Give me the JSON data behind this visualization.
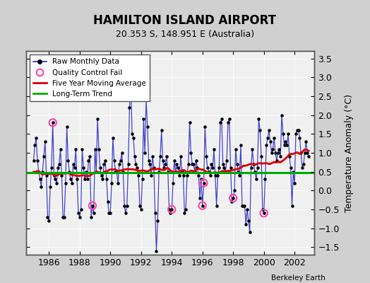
{
  "title": "HAMILTON ISLAND AIRPORT",
  "subtitle": "20.353 S, 148.951 E (Australia)",
  "ylabel": "Temperature Anomaly (°C)",
  "credit": "Berkeley Earth",
  "xlim": [
    1984.5,
    2003.3
  ],
  "ylim": [
    -1.7,
    3.7
  ],
  "yticks": [
    -1.5,
    -1.0,
    -0.5,
    0.0,
    0.5,
    1.0,
    1.5,
    2.0,
    2.5,
    3.0,
    3.5
  ],
  "xticks": [
    1986,
    1988,
    1990,
    1992,
    1994,
    1996,
    1998,
    2000,
    2002
  ],
  "long_term_trend": 0.48,
  "plot_bg": "#f0f0f0",
  "fig_bg": "#d0d0d0",
  "raw_color": "#2222cc",
  "ma_color": "#dd0000",
  "trend_color": "#00aa00",
  "qc_color": "#ff44aa",
  "raw_monthly": [
    0.8,
    1.2,
    1.4,
    0.8,
    0.5,
    0.3,
    0.1,
    0.5,
    0.9,
    1.3,
    0.4,
    -0.7,
    -0.8,
    0.1,
    0.6,
    1.8,
    0.4,
    0.3,
    0.2,
    0.6,
    0.7,
    1.1,
    0.4,
    -0.7,
    -0.7,
    0.2,
    1.7,
    0.8,
    0.5,
    0.3,
    0.2,
    0.7,
    0.6,
    1.1,
    0.3,
    -0.6,
    -0.7,
    -0.5,
    1.1,
    0.6,
    0.3,
    0.5,
    0.3,
    0.8,
    0.9,
    -0.7,
    -0.4,
    -0.6,
    1.1,
    0.5,
    1.9,
    1.1,
    0.6,
    0.4,
    0.3,
    0.7,
    0.8,
    0.3,
    -0.3,
    -0.6,
    -0.6,
    0.2,
    1.4,
    0.8,
    0.5,
    0.5,
    0.2,
    0.7,
    0.8,
    1.0,
    0.5,
    -0.4,
    -0.6,
    -0.4,
    0.7,
    2.2,
    2.9,
    1.5,
    1.4,
    0.9,
    0.7,
    0.6,
    0.4,
    -0.4,
    -0.5,
    0.3,
    1.9,
    1.0,
    2.4,
    1.7,
    0.8,
    0.7,
    0.4,
    0.9,
    0.6,
    -0.6,
    -1.6,
    -0.8,
    0.5,
    0.9,
    1.6,
    0.8,
    0.6,
    0.7,
    0.9,
    0.5,
    -0.5,
    -0.6,
    -0.5,
    0.2,
    0.8,
    0.5,
    0.7,
    0.6,
    0.4,
    0.9,
    0.5,
    0.4,
    -0.6,
    -0.5,
    0.4,
    0.7,
    1.8,
    1.0,
    0.7,
    0.7,
    0.5,
    0.8,
    0.6,
    0.4,
    -0.2,
    0.3,
    -0.4,
    0.2,
    1.7,
    0.9,
    0.6,
    0.5,
    0.4,
    0.7,
    0.6,
    1.1,
    0.4,
    -0.4,
    0.4,
    0.6,
    1.8,
    1.9,
    0.7,
    0.6,
    0.5,
    0.8,
    1.8,
    1.9,
    0.6,
    -0.3,
    -0.2,
    0.0,
    1.1,
    0.7,
    0.5,
    0.4,
    1.2,
    -0.4,
    -0.4,
    -0.4,
    -0.9,
    -0.5,
    -0.8,
    -1.1,
    0.6,
    1.1,
    0.7,
    0.5,
    0.3,
    0.6,
    1.9,
    1.6,
    0.9,
    -0.5,
    -0.6,
    0.3,
    1.2,
    1.4,
    1.6,
    1.3,
    1.0,
    1.1,
    1.4,
    1.0,
    0.8,
    1.0,
    1.1,
    0.9,
    2.0,
    1.5,
    1.2,
    1.3,
    1.2,
    1.5,
    0.9,
    0.6,
    -0.4,
    0.5,
    0.2,
    1.5,
    1.6,
    1.6,
    1.4,
    1.0,
    0.6,
    0.7,
    1.0,
    1.3,
    1.0,
    0.9
  ],
  "qc_fail_indices": [
    15,
    46,
    108,
    132,
    133,
    156,
    180
  ],
  "start_year": 1985,
  "start_month": 1
}
